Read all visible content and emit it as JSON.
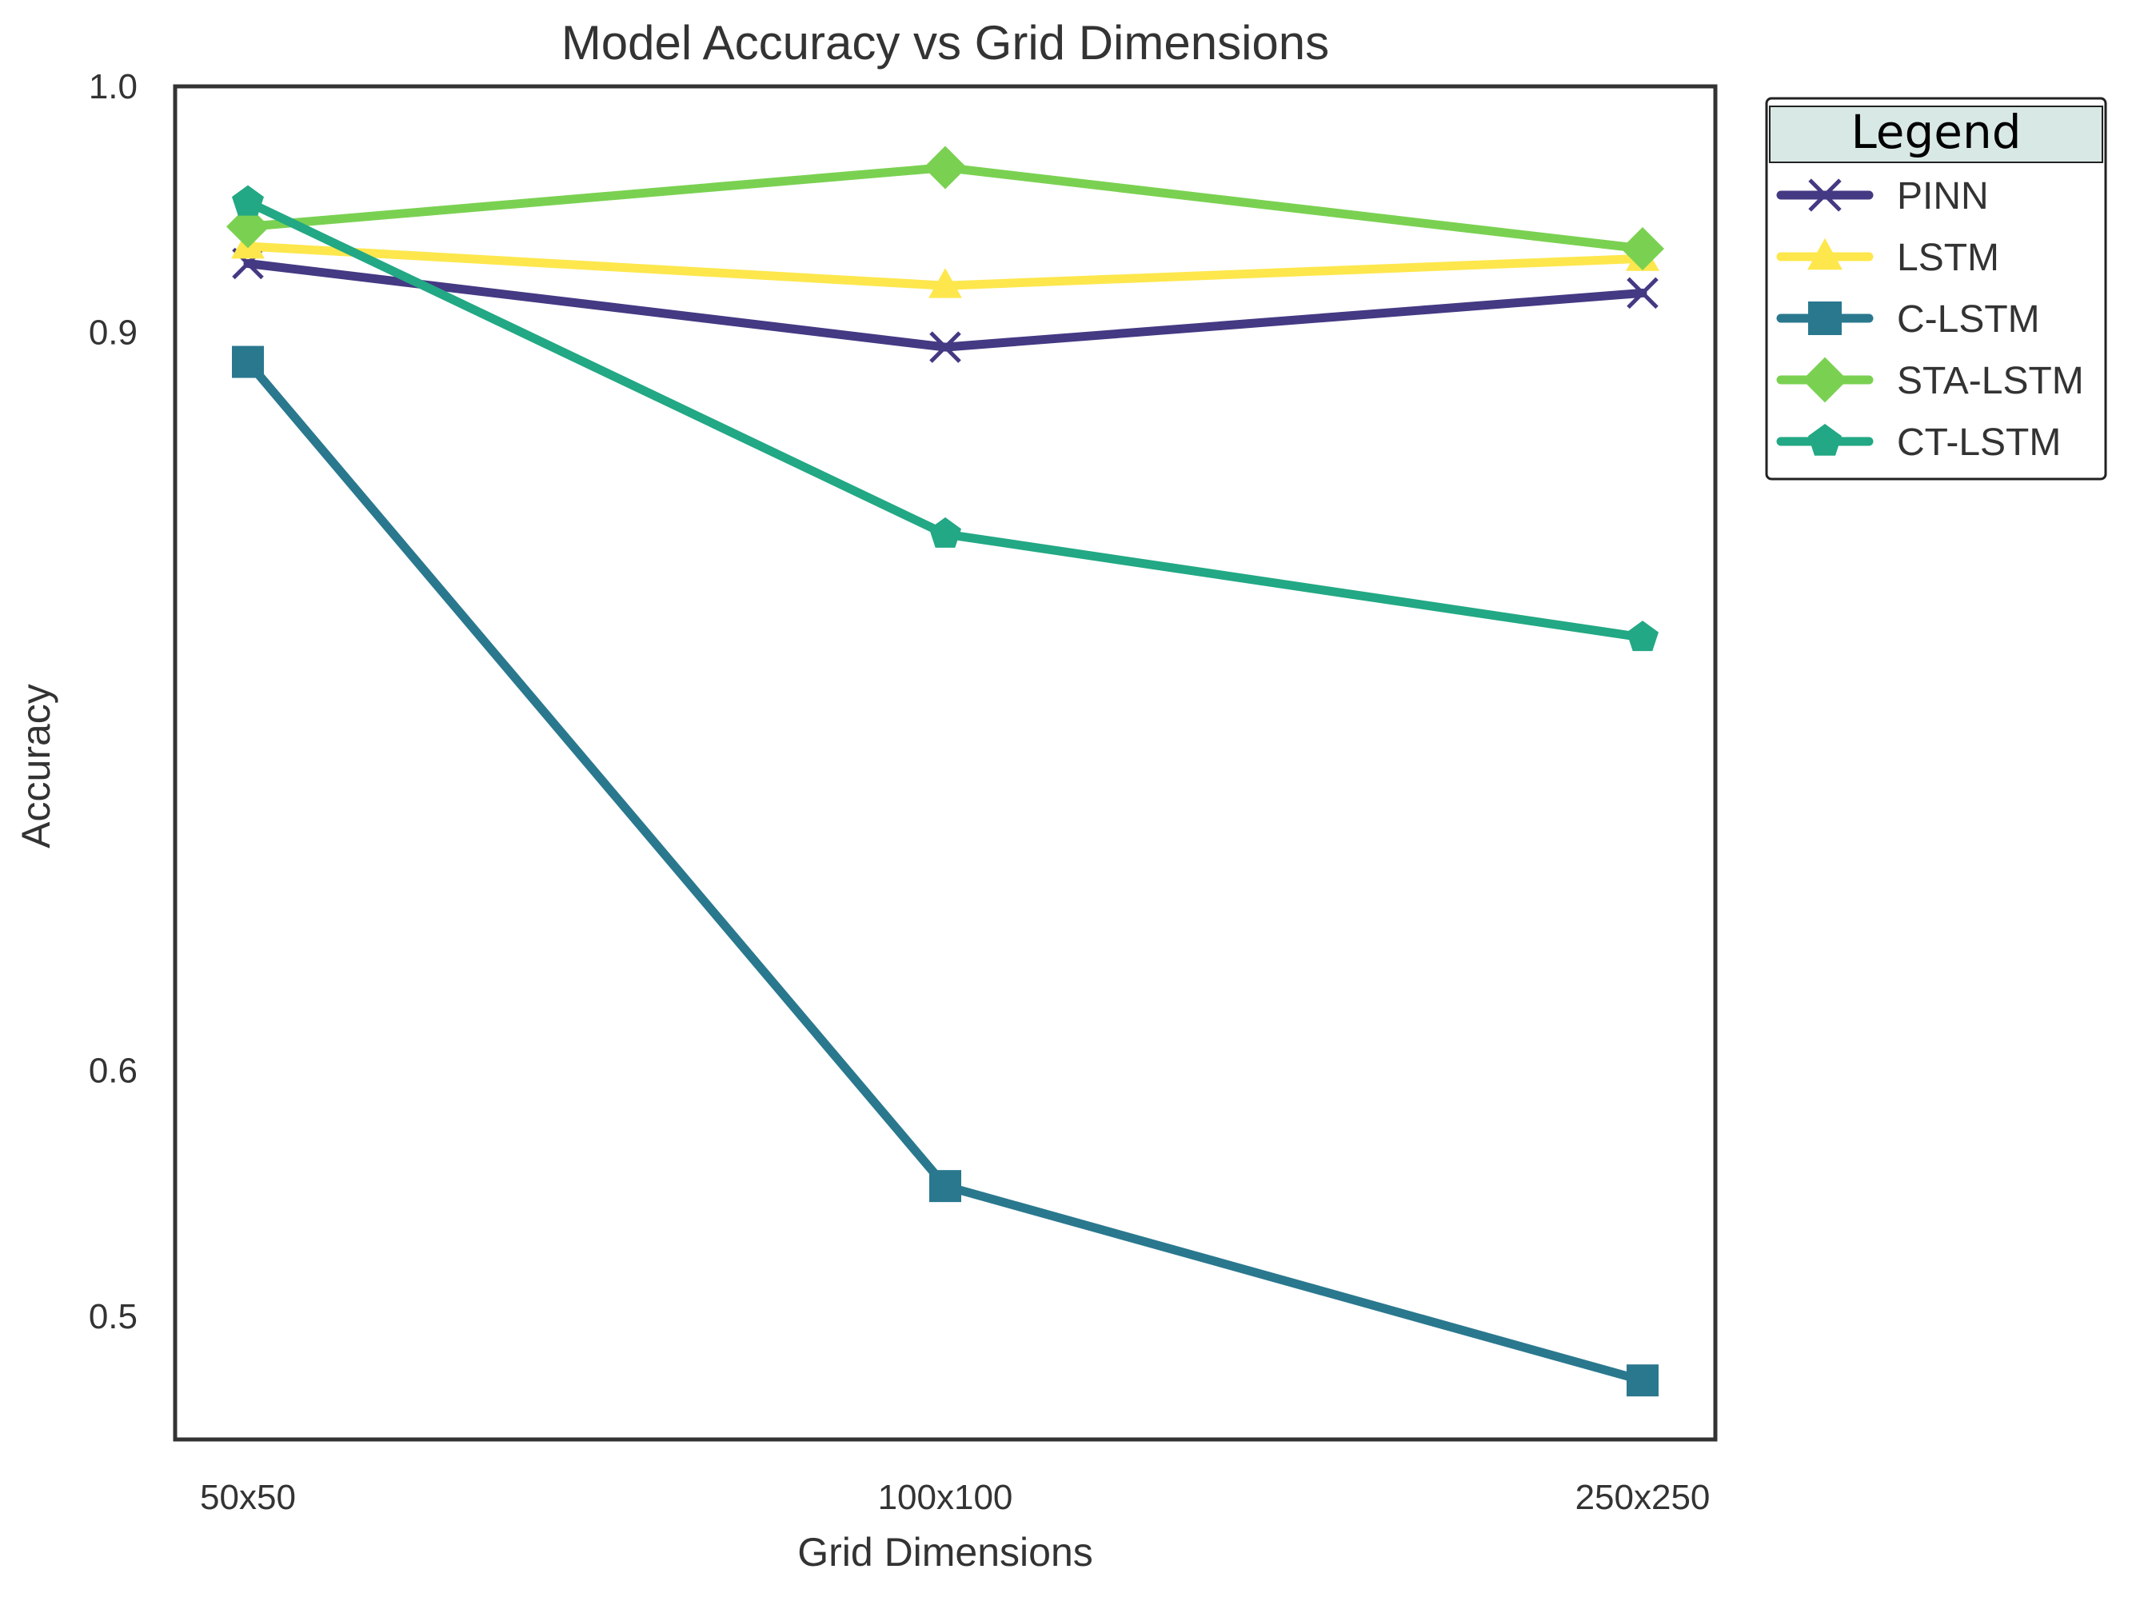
{
  "chart_data": {
    "type": "line",
    "title": "Model Accuracy vs Grid Dimensions",
    "xlabel": "Grid Dimensions",
    "ylabel": "Accuracy",
    "categories": [
      "50x50",
      "100x100",
      "250x250"
    ],
    "y_ticks": [
      0.5,
      0.6,
      0.9,
      1.0
    ],
    "y_tick_labels": [
      "0.5",
      "0.6",
      "0.9",
      "1.0"
    ],
    "ylim": [
      0.45,
      1.0
    ],
    "grid": false,
    "legend": {
      "title": "Legend",
      "placement": "outside-top-right"
    },
    "series": [
      {
        "name": "PINN",
        "values": [
          0.928,
          0.894,
          0.916
        ],
        "color": "#443983",
        "marker": "x"
      },
      {
        "name": "LSTM",
        "values": [
          0.935,
          0.919,
          0.93
        ],
        "color": "#fde74c",
        "marker": "triangle"
      },
      {
        "name": "C-LSTM",
        "values": [
          0.888,
          0.553,
          0.474
        ],
        "color": "#2a788e",
        "marker": "square"
      },
      {
        "name": "STA-LSTM",
        "values": [
          0.943,
          0.967,
          0.934
        ],
        "color": "#7ad151",
        "marker": "diamond"
      },
      {
        "name": "CT-LSTM",
        "values": [
          0.953,
          0.818,
          0.776
        ],
        "color": "#22a884",
        "marker": "pentagon"
      }
    ]
  }
}
